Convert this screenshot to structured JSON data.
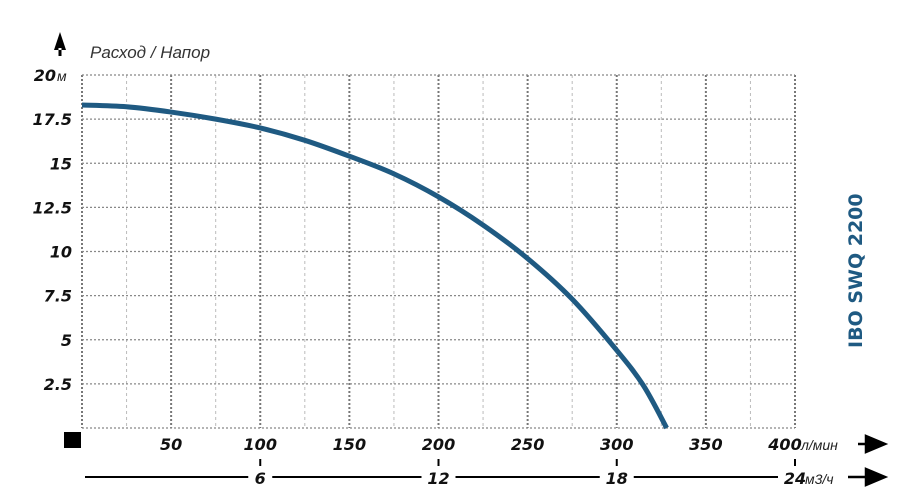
{
  "chart_data": {
    "type": "line",
    "title": "Расход / Напор",
    "model_label": "IBO SWQ 2200",
    "x_unit": "л/мин",
    "x2_unit": "м3/ч",
    "y_unit": "м",
    "xlim": [
      0,
      400
    ],
    "ylim": [
      0,
      20
    ],
    "x_ticks": [
      50,
      100,
      150,
      200,
      250,
      300,
      350,
      400
    ],
    "x2_ticks": [
      {
        "value": 6,
        "at_lpm": 100
      },
      {
        "value": 12,
        "at_lpm": 200
      },
      {
        "value": 18,
        "at_lpm": 300
      },
      {
        "value": 24,
        "at_lpm": 400
      }
    ],
    "y_ticks": [
      "2.5",
      "5",
      "7.5",
      "10",
      "12.5",
      "15",
      "17.5",
      "20"
    ],
    "grid": true,
    "curve_color": "#1f5a82",
    "series": [
      {
        "x": [
          0,
          25,
          50,
          75,
          100,
          125,
          150,
          175,
          200,
          225,
          250,
          275,
          300,
          315,
          328
        ],
        "y": [
          18.3,
          18.2,
          17.9,
          17.5,
          17.0,
          16.3,
          15.4,
          14.4,
          13.1,
          11.5,
          9.6,
          7.3,
          4.4,
          2.4,
          0
        ]
      }
    ]
  }
}
